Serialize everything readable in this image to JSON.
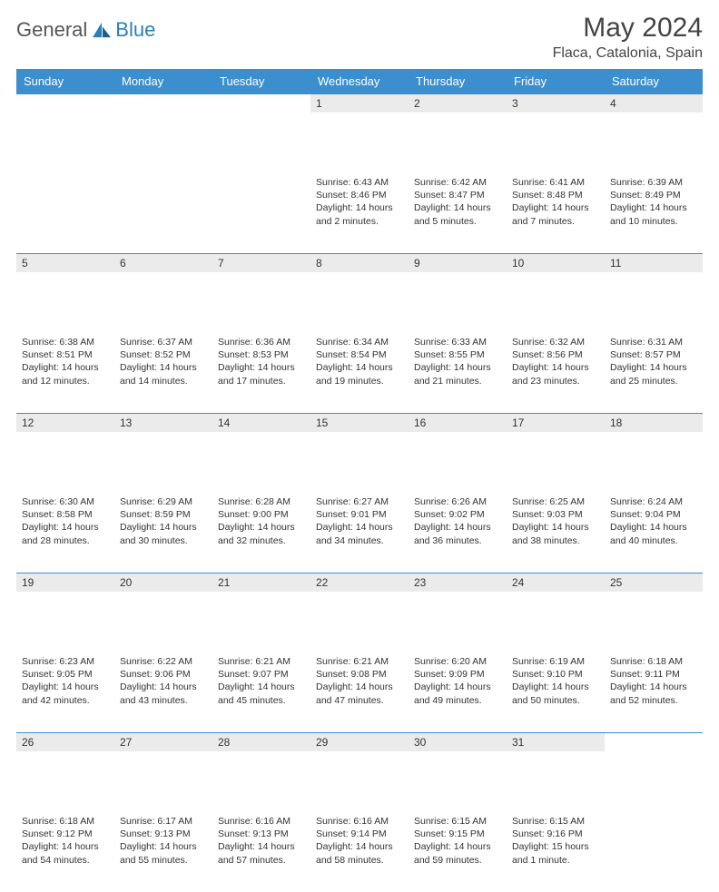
{
  "brand": {
    "word1": "General",
    "word2": "Blue"
  },
  "title": "May 2024",
  "location": "Flaca, Catalonia, Spain",
  "colors": {
    "header_bg": "#3b8fce",
    "header_text": "#ffffff",
    "daynum_bg": "#ebebeb",
    "border": "#3b8fce",
    "body_text": "#333333",
    "brand_gray": "#555555",
    "brand_blue": "#2a7fba"
  },
  "day_headers": [
    "Sunday",
    "Monday",
    "Tuesday",
    "Wednesday",
    "Thursday",
    "Friday",
    "Saturday"
  ],
  "weeks": [
    [
      {
        "n": "",
        "body": ""
      },
      {
        "n": "",
        "body": ""
      },
      {
        "n": "",
        "body": ""
      },
      {
        "n": "1",
        "body": "Sunrise: 6:43 AM\nSunset: 8:46 PM\nDaylight: 14 hours and 2 minutes."
      },
      {
        "n": "2",
        "body": "Sunrise: 6:42 AM\nSunset: 8:47 PM\nDaylight: 14 hours and 5 minutes."
      },
      {
        "n": "3",
        "body": "Sunrise: 6:41 AM\nSunset: 8:48 PM\nDaylight: 14 hours and 7 minutes."
      },
      {
        "n": "4",
        "body": "Sunrise: 6:39 AM\nSunset: 8:49 PM\nDaylight: 14 hours and 10 minutes."
      }
    ],
    [
      {
        "n": "5",
        "body": "Sunrise: 6:38 AM\nSunset: 8:51 PM\nDaylight: 14 hours and 12 minutes."
      },
      {
        "n": "6",
        "body": "Sunrise: 6:37 AM\nSunset: 8:52 PM\nDaylight: 14 hours and 14 minutes."
      },
      {
        "n": "7",
        "body": "Sunrise: 6:36 AM\nSunset: 8:53 PM\nDaylight: 14 hours and 17 minutes."
      },
      {
        "n": "8",
        "body": "Sunrise: 6:34 AM\nSunset: 8:54 PM\nDaylight: 14 hours and 19 minutes."
      },
      {
        "n": "9",
        "body": "Sunrise: 6:33 AM\nSunset: 8:55 PM\nDaylight: 14 hours and 21 minutes."
      },
      {
        "n": "10",
        "body": "Sunrise: 6:32 AM\nSunset: 8:56 PM\nDaylight: 14 hours and 23 minutes."
      },
      {
        "n": "11",
        "body": "Sunrise: 6:31 AM\nSunset: 8:57 PM\nDaylight: 14 hours and 25 minutes."
      }
    ],
    [
      {
        "n": "12",
        "body": "Sunrise: 6:30 AM\nSunset: 8:58 PM\nDaylight: 14 hours and 28 minutes."
      },
      {
        "n": "13",
        "body": "Sunrise: 6:29 AM\nSunset: 8:59 PM\nDaylight: 14 hours and 30 minutes."
      },
      {
        "n": "14",
        "body": "Sunrise: 6:28 AM\nSunset: 9:00 PM\nDaylight: 14 hours and 32 minutes."
      },
      {
        "n": "15",
        "body": "Sunrise: 6:27 AM\nSunset: 9:01 PM\nDaylight: 14 hours and 34 minutes."
      },
      {
        "n": "16",
        "body": "Sunrise: 6:26 AM\nSunset: 9:02 PM\nDaylight: 14 hours and 36 minutes."
      },
      {
        "n": "17",
        "body": "Sunrise: 6:25 AM\nSunset: 9:03 PM\nDaylight: 14 hours and 38 minutes."
      },
      {
        "n": "18",
        "body": "Sunrise: 6:24 AM\nSunset: 9:04 PM\nDaylight: 14 hours and 40 minutes."
      }
    ],
    [
      {
        "n": "19",
        "body": "Sunrise: 6:23 AM\nSunset: 9:05 PM\nDaylight: 14 hours and 42 minutes."
      },
      {
        "n": "20",
        "body": "Sunrise: 6:22 AM\nSunset: 9:06 PM\nDaylight: 14 hours and 43 minutes."
      },
      {
        "n": "21",
        "body": "Sunrise: 6:21 AM\nSunset: 9:07 PM\nDaylight: 14 hours and 45 minutes."
      },
      {
        "n": "22",
        "body": "Sunrise: 6:21 AM\nSunset: 9:08 PM\nDaylight: 14 hours and 47 minutes."
      },
      {
        "n": "23",
        "body": "Sunrise: 6:20 AM\nSunset: 9:09 PM\nDaylight: 14 hours and 49 minutes."
      },
      {
        "n": "24",
        "body": "Sunrise: 6:19 AM\nSunset: 9:10 PM\nDaylight: 14 hours and 50 minutes."
      },
      {
        "n": "25",
        "body": "Sunrise: 6:18 AM\nSunset: 9:11 PM\nDaylight: 14 hours and 52 minutes."
      }
    ],
    [
      {
        "n": "26",
        "body": "Sunrise: 6:18 AM\nSunset: 9:12 PM\nDaylight: 14 hours and 54 minutes."
      },
      {
        "n": "27",
        "body": "Sunrise: 6:17 AM\nSunset: 9:13 PM\nDaylight: 14 hours and 55 minutes."
      },
      {
        "n": "28",
        "body": "Sunrise: 6:16 AM\nSunset: 9:13 PM\nDaylight: 14 hours and 57 minutes."
      },
      {
        "n": "29",
        "body": "Sunrise: 6:16 AM\nSunset: 9:14 PM\nDaylight: 14 hours and 58 minutes."
      },
      {
        "n": "30",
        "body": "Sunrise: 6:15 AM\nSunset: 9:15 PM\nDaylight: 14 hours and 59 minutes."
      },
      {
        "n": "31",
        "body": "Sunrise: 6:15 AM\nSunset: 9:16 PM\nDaylight: 15 hours and 1 minute."
      },
      {
        "n": "",
        "body": ""
      }
    ]
  ]
}
